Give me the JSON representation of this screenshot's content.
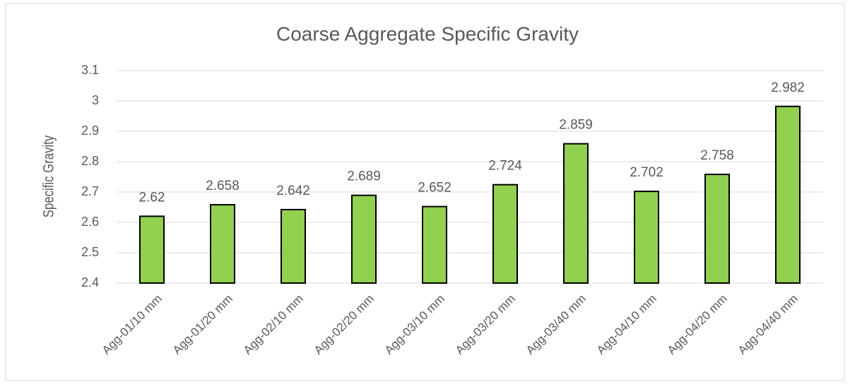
{
  "chart_data": {
    "type": "bar",
    "title": "Coarse Aggregate Specific Gravity",
    "y_label": "Specific Gravity",
    "categories": [
      "Agg-01/10 mm",
      "Agg-01/20 mm",
      "Agg-02/10 mm",
      "Agg-02/20 mm",
      "Agg-03/10 mm",
      "Agg-03/20 mm",
      "Agg-03/40 mm",
      "Agg-04/10 mm",
      "Agg-04/20 mm",
      "Agg-04/40 mm"
    ],
    "values": [
      2.62,
      2.658,
      2.642,
      2.689,
      2.652,
      2.724,
      2.859,
      2.702,
      2.758,
      2.982
    ],
    "color": "#92d050",
    "ylim": [
      2.4,
      3.1
    ],
    "yticks": [
      2.4,
      2.5,
      2.6,
      2.7,
      2.8,
      2.9,
      3,
      3.1
    ],
    "grid": true
  }
}
